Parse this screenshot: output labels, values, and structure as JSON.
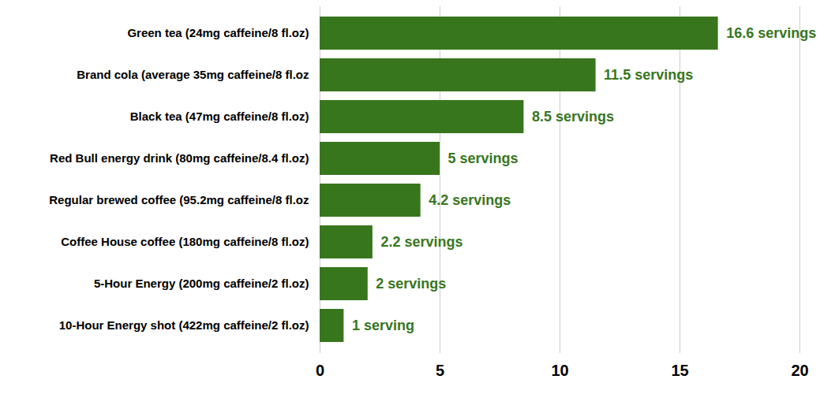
{
  "chart_data": {
    "type": "bar",
    "orientation": "horizontal",
    "categories": [
      "Green tea (24mg caffeine/8 fl.oz)",
      "Brand cola (average 35mg caffeine/8 fl.oz",
      "Black tea (47mg caffeine/8 fl.oz)",
      "Red Bull energy drink (80mg caffeine/8.4 fl.oz)",
      "Regular brewed coffee (95.2mg caffeine/8 fl.oz",
      "Coffee House coffee (180mg caffeine/8 fl.oz)",
      "5-Hour Energy (200mg caffeine/2 fl.oz)",
      "10-Hour Energy shot (422mg caffeine/2 fl.oz)"
    ],
    "values": [
      16.6,
      11.5,
      8.5,
      5,
      4.2,
      2.2,
      2,
      1
    ],
    "value_labels": [
      "16.6 servings",
      "11.5 servings",
      "8.5 servings",
      "5 servings",
      "4.2 servings",
      "2.2 servings",
      "2 servings",
      "1 serving"
    ],
    "data_labels": true,
    "color": "#38761d",
    "xlim": [
      0,
      20
    ],
    "xticks": [
      0,
      5,
      10,
      15,
      20
    ],
    "grid": true
  }
}
